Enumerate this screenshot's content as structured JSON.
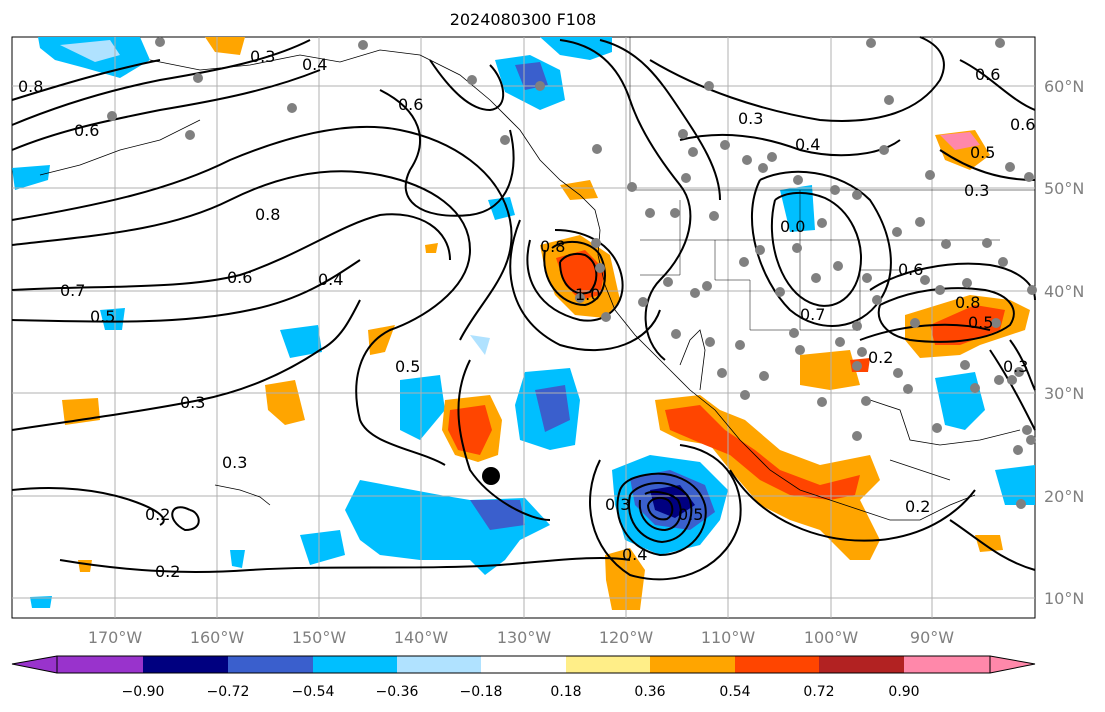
{
  "title": "2024080300 F108",
  "lon_labels": [
    "170°W",
    "160°W",
    "150°W",
    "140°W",
    "130°W",
    "120°W",
    "110°W",
    "100°W",
    "90°W"
  ],
  "lat_labels": [
    "10°N",
    "20°N",
    "30°N",
    "40°N",
    "50°N",
    "60°N"
  ],
  "colorbar": {
    "colors": [
      "#9933cc",
      "#000080",
      "#3a5fcd",
      "#00bfff",
      "#b0e2ff",
      "#ffffff",
      "#ffee88",
      "#ffa500",
      "#ff4500",
      "#b22222",
      "#ff88aa"
    ],
    "tick_labels": [
      "−0.90",
      "−0.72",
      "−0.54",
      "−0.36",
      "−0.18",
      "0.18",
      "0.36",
      "0.54",
      "0.72",
      "0.90"
    ]
  },
  "contour_labels": [
    "0.3",
    "0.4",
    "0.6",
    "0.8",
    "0.6",
    "0.7",
    "0.5",
    "0.8",
    "0.6",
    "0.4",
    "0.5",
    "0.3",
    "0.3",
    "0.2",
    "0.2",
    "0.3",
    "0.6",
    "0.3",
    "0.4",
    "0.5",
    "0.6",
    "0.3",
    "0.6",
    "0.8",
    "0.5",
    "0.2",
    "0.2",
    "0.0",
    "1.0",
    "0.8",
    "0.3",
    "0.5",
    "0.4",
    "0.7"
  ],
  "colors": {
    "negative": "#00bfff",
    "positive": "#ffa500",
    "grid": "#b0b0b0",
    "stations": "#808080"
  }
}
